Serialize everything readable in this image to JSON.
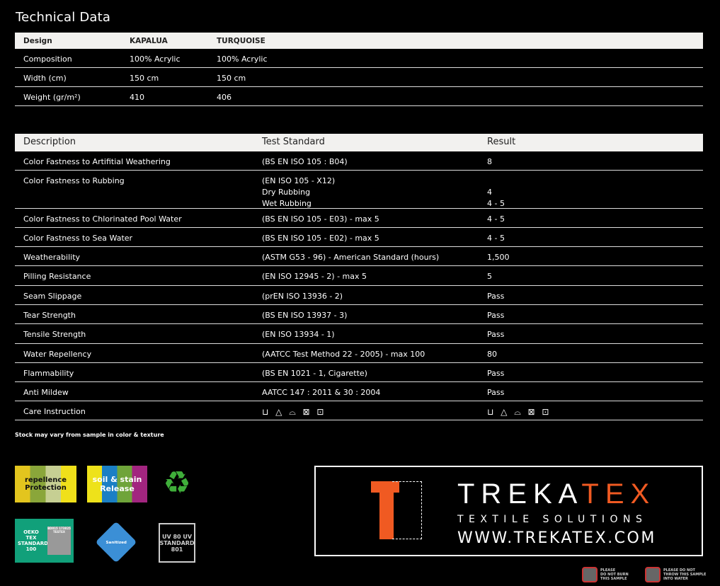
{
  "title": "Technical Data",
  "spec_table": {
    "headers": [
      "Design",
      "KAPALUA",
      "TURQUOISE"
    ],
    "rows": [
      [
        "Composition",
        "100% Acrylic",
        "100% Acrylic"
      ],
      [
        "Width (cm)",
        "150 cm",
        "150 cm"
      ],
      [
        "Weight (gr/m²)",
        "410",
        "406"
      ]
    ]
  },
  "test_table": {
    "headers": [
      "Description",
      "Test Standard",
      "Result"
    ],
    "rows": [
      [
        "Color Fastness to Artifitial Weathering",
        "(BS EN ISO 105 : B04)",
        "8"
      ],
      [
        "Color Fastness to Rubbing",
        "(EN ISO 105 - X12)\nDry Rubbing\nWet Rubbing",
        "\n4\n4 - 5"
      ],
      [
        "Color Fastness to Chlorinated Pool Water",
        "(BS EN ISO 105 - E03) - max 5",
        "4 - 5"
      ],
      [
        "Color Fastness to Sea Water",
        "(BS EN ISO 105 - E02) - max 5",
        "4 - 5"
      ],
      [
        "Weatherability",
        "(ASTM G53 - 96) - American Standard (hours)",
        "1,500"
      ],
      [
        "Pilling Resistance",
        "(EN ISO 12945 - 2) - max 5",
        "5"
      ],
      [
        "Seam Slippage",
        "(prEN ISO 13936 - 2)",
        "Pass"
      ],
      [
        "Tear Strength",
        "(BS EN ISO 13937 - 3)",
        "Pass"
      ],
      [
        "Tensile Strength",
        "(EN ISO 13934 - 1)",
        "Pass"
      ],
      [
        "Water Repellency",
        "(AATCC Test Method 22 - 2005) - max 100",
        "80"
      ],
      [
        "Flammability",
        "(BS EN 1021 - 1, Cigarette)",
        "Pass"
      ],
      [
        "Anti Mildew",
        "AATCC 147 : 2011 & 30 : 2004",
        "Pass"
      ],
      [
        "Care Instruction",
        "⊔ △ ⌓ ⊠ ⊡",
        "⊔ △ ⌓ ⊠ ⊡"
      ]
    ]
  },
  "care_icons": [
    "wash-40-icon",
    "bleach-triangle-icon",
    "iron-icon",
    "no-tumble-dry-icon",
    "dry-clean-icon"
  ],
  "note": "Stock may vary from sample in color & texture",
  "logos": {
    "repellence": "repellence Protection",
    "soil": "soil & stain Release",
    "oeko": "OEKO TEX STANDARD 100",
    "oeko_code": "BD015 173825 TESTEX",
    "sanitized": "Sanitized",
    "uv": "UV 80 UV STANDARD 801"
  },
  "brand": {
    "name_white": "TREKA",
    "name_orange": "TEX",
    "tagline": "TEXTILE SOLUTIONS",
    "url": "WWW.TREKATEX.COM",
    "accent": "#f05a22"
  },
  "warnings": [
    "PLEASE\nDO NOT BURN\nTHIS SAMPLE",
    "PLEASE DO NOT\nTHROW THIS SAMPLE\nINTO WATER"
  ]
}
